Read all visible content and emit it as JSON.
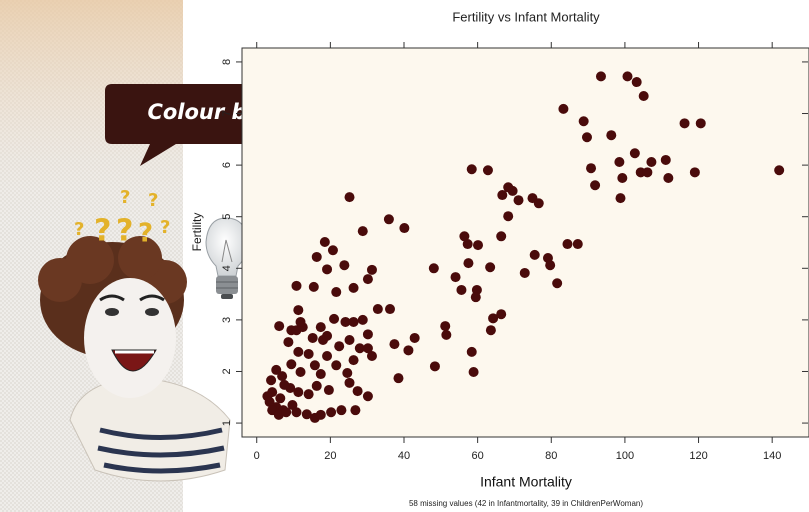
{
  "chart_data": {
    "type": "scatter",
    "title": "Fertility vs Infant Mortality",
    "xlabel": "Infant Mortality",
    "ylabel": "Fertility",
    "note": "58 missing values (42 in Infantmortality, 39 in ChildrenPerWoman)",
    "color": "#4a0b0b",
    "xlim": [
      -4,
      150
    ],
    "ylim": [
      0.73,
      8.27
    ],
    "xticks": [
      0,
      20,
      40,
      60,
      80,
      100,
      120,
      140
    ],
    "yticks": [
      1,
      2,
      3,
      4,
      5,
      6,
      7,
      8
    ],
    "x": [
      93.5,
      100.7,
      103.2,
      105.1,
      83.3,
      88.8,
      89.7,
      96.3,
      116.2,
      120.6,
      102.7,
      98.5,
      107.2,
      111.1,
      90.8,
      104.3,
      99.3,
      106.1,
      111.8,
      119.0,
      141.9,
      91.9,
      98.8,
      58.4,
      62.8,
      69.5,
      68.3,
      66.7,
      71.1,
      74.9,
      76.6,
      68.3,
      25.2,
      35.9,
      40.1,
      28.8,
      18.5,
      20.7,
      16.3,
      19.1,
      23.8,
      31.3,
      30.2,
      56.4,
      57.3,
      60.1,
      66.4,
      84.4,
      87.2,
      75.5,
      79.1,
      79.7,
      72.8,
      57.5,
      63.4,
      48.1,
      54.0,
      55.6,
      59.8,
      81.6,
      59.5,
      66.4,
      64.2,
      63.6,
      51.2,
      51.5,
      42.9,
      37.4,
      41.2,
      58.4,
      58.9,
      48.4,
      38.5,
      15.5,
      21.6,
      26.3,
      32.9,
      36.2,
      10.8,
      11.3,
      6.1,
      9.4,
      10.8,
      12.5,
      8.6,
      11.3,
      15.2,
      17.4,
      21.0,
      24.1,
      26.3,
      28.8,
      30.2,
      25.2,
      28.0,
      18.0,
      22.4,
      19.1,
      14.1,
      9.4,
      5.3,
      3.9,
      6.9,
      11.9,
      15.8,
      17.4,
      21.6,
      24.6,
      26.3,
      31.3,
      30.2,
      25.2,
      27.4,
      30.2,
      19.6,
      16.3,
      14.1,
      11.3,
      9.1,
      4.2,
      2.9,
      3.5,
      5.3,
      7.2,
      9.7,
      10.8,
      13.6,
      15.8,
      17.4,
      20.2,
      23.0,
      26.8,
      4.2,
      6.0,
      8.0,
      6.4,
      7.5,
      11.9,
      19.1
    ],
    "values": [
      7.72,
      7.72,
      7.61,
      7.34,
      7.09,
      6.85,
      6.54,
      6.58,
      6.81,
      6.81,
      6.23,
      6.06,
      6.06,
      6.1,
      5.94,
      5.86,
      5.75,
      5.86,
      5.75,
      5.86,
      5.9,
      5.61,
      5.36,
      5.92,
      5.9,
      5.5,
      5.57,
      5.42,
      5.32,
      5.36,
      5.26,
      5.01,
      5.38,
      4.95,
      4.78,
      4.72,
      4.51,
      4.35,
      4.22,
      3.98,
      4.06,
      3.97,
      3.79,
      4.62,
      4.47,
      4.45,
      4.62,
      4.47,
      4.47,
      4.26,
      4.2,
      4.06,
      3.91,
      4.1,
      4.02,
      4.0,
      3.83,
      3.58,
      3.58,
      3.71,
      3.44,
      3.11,
      3.03,
      2.8,
      2.88,
      2.71,
      2.65,
      2.53,
      2.41,
      2.38,
      1.99,
      2.1,
      1.87,
      3.64,
      3.54,
      3.62,
      3.21,
      3.21,
      3.66,
      3.19,
      2.88,
      2.8,
      2.8,
      2.86,
      2.57,
      2.38,
      2.65,
      2.86,
      3.02,
      2.96,
      2.96,
      3.0,
      2.72,
      2.61,
      2.45,
      2.61,
      2.49,
      2.3,
      2.34,
      2.14,
      2.03,
      1.83,
      1.91,
      1.99,
      2.12,
      1.95,
      2.12,
      1.97,
      2.22,
      2.3,
      2.45,
      1.78,
      1.62,
      1.52,
      1.64,
      1.72,
      1.56,
      1.6,
      1.68,
      1.6,
      1.52,
      1.41,
      1.31,
      1.25,
      1.35,
      1.21,
      1.17,
      1.1,
      1.16,
      1.21,
      1.25,
      1.25,
      1.25,
      1.16,
      1.21,
      1.48,
      1.74,
      2.96,
      2.69
    ]
  },
  "callout": "Colour by …",
  "question_mark": "?"
}
